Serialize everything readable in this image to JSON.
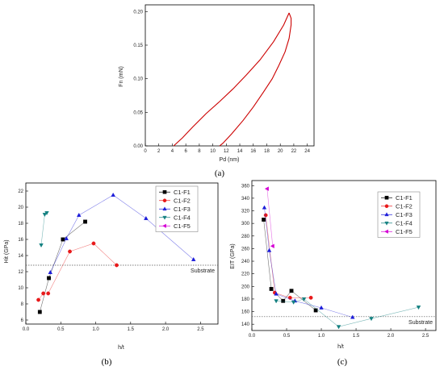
{
  "chart_data": [
    {
      "type": "line",
      "panel_label": "(a)",
      "xlabel": "Pd (nm)",
      "ylabel": "Fn (mN)",
      "xlim": [
        0,
        25
      ],
      "ylim": [
        0,
        0.21
      ],
      "x_ticks": [
        0,
        2,
        4,
        6,
        8,
        10,
        12,
        14,
        16,
        18,
        20,
        22,
        24
      ],
      "y_ticks": [
        0.0,
        0.05,
        0.1,
        0.15,
        0.2
      ],
      "color": "#cc0000",
      "series": [
        {
          "loading": [
            [
              4.2,
              0
            ],
            [
              5.5,
              0.012
            ],
            [
              7,
              0.028
            ],
            [
              9,
              0.048
            ],
            [
              11,
              0.066
            ],
            [
              13,
              0.085
            ],
            [
              15,
              0.106
            ],
            [
              17,
              0.128
            ],
            [
              19,
              0.155
            ],
            [
              20.5,
              0.18
            ],
            [
              21.3,
              0.198
            ]
          ],
          "unloading": [
            [
              21.3,
              0.198
            ],
            [
              21.6,
              0.19
            ],
            [
              21.6,
              0.18
            ],
            [
              21.3,
              0.16
            ],
            [
              20.7,
              0.14
            ],
            [
              19.8,
              0.12
            ],
            [
              18.8,
              0.1
            ],
            [
              17.5,
              0.08
            ],
            [
              16,
              0.058
            ],
            [
              14.5,
              0.038
            ],
            [
              12.8,
              0.018
            ],
            [
              11.5,
              0.004
            ],
            [
              11.0,
              0.0
            ]
          ]
        }
      ]
    },
    {
      "type": "scatter",
      "panel_label": "(b)",
      "xlabel": "h/t",
      "ylabel": "Hit (GPa)",
      "xlim": [
        0,
        2.75
      ],
      "ylim": [
        5.5,
        23
      ],
      "x_ticks": [
        0.0,
        0.5,
        1.0,
        1.5,
        2.0,
        2.5
      ],
      "y_ticks": [
        6,
        8,
        10,
        12,
        14,
        16,
        18,
        20,
        22
      ],
      "reference_line": {
        "y": 12.8,
        "label": "Substrate"
      },
      "series": [
        {
          "name": "C1-F1",
          "marker": "square",
          "color": "#000000",
          "x": [
            0.2,
            0.33,
            0.53,
            0.85
          ],
          "y": [
            7.0,
            11.2,
            16.0,
            18.2
          ]
        },
        {
          "name": "C1-F2",
          "marker": "circle",
          "color": "#e8191a",
          "x": [
            0.18,
            0.25,
            0.32,
            0.63,
            0.97,
            1.3
          ],
          "y": [
            8.5,
            9.3,
            9.3,
            14.5,
            15.5,
            12.8
          ]
        },
        {
          "name": "C1-F3",
          "marker": "triangle-up",
          "color": "#1c1cd9",
          "x": [
            0.35,
            0.58,
            0.76,
            1.25,
            1.72,
            2.4
          ],
          "y": [
            11.9,
            16.1,
            19.0,
            21.5,
            18.6,
            13.5
          ]
        },
        {
          "name": "C1-F4",
          "marker": "triangle-down",
          "color": "#138080",
          "x": [
            0.22,
            0.27,
            0.3
          ],
          "y": [
            15.3,
            19.1,
            19.3
          ]
        },
        {
          "name": "C1-F5",
          "marker": "triangle-left",
          "color": "#d400d4",
          "x": [],
          "y": []
        }
      ]
    },
    {
      "type": "scatter",
      "panel_label": "(c)",
      "xlabel": "h/t",
      "ylabel": "EIT (GPa)",
      "xlim": [
        0,
        2.65
      ],
      "ylim": [
        130,
        368
      ],
      "x_ticks": [
        0.0,
        0.5,
        1.0,
        1.5,
        2.0,
        2.5
      ],
      "y_ticks": [
        140,
        160,
        180,
        200,
        220,
        240,
        260,
        280,
        300,
        320,
        340,
        360
      ],
      "reference_line": {
        "y": 152,
        "label": "Substrate"
      },
      "series": [
        {
          "name": "C1-F1",
          "marker": "square",
          "color": "#000000",
          "x": [
            0.17,
            0.28,
            0.45,
            0.57,
            0.92
          ],
          "y": [
            306,
            196,
            177,
            193,
            162
          ]
        },
        {
          "name": "C1-F2",
          "marker": "circle",
          "color": "#e8191a",
          "x": [
            0.2,
            0.33,
            0.55,
            0.85
          ],
          "y": [
            313,
            190,
            182,
            182
          ]
        },
        {
          "name": "C1-F3",
          "marker": "triangle-up",
          "color": "#1c1cd9",
          "x": [
            0.18,
            0.25,
            0.35,
            0.62,
            1.0,
            1.45
          ],
          "y": [
            325,
            257,
            188,
            177,
            166,
            151
          ]
        },
        {
          "name": "C1-F4",
          "marker": "triangle-down",
          "color": "#138080",
          "x": [
            0.35,
            0.6,
            0.75,
            1.25,
            1.72,
            2.4
          ],
          "y": [
            177,
            175,
            180,
            136,
            149,
            167
          ]
        },
        {
          "name": "C1-F5",
          "marker": "triangle-left",
          "color": "#d400d4",
          "x": [
            0.22,
            0.3
          ],
          "y": [
            355,
            264
          ]
        }
      ]
    }
  ]
}
